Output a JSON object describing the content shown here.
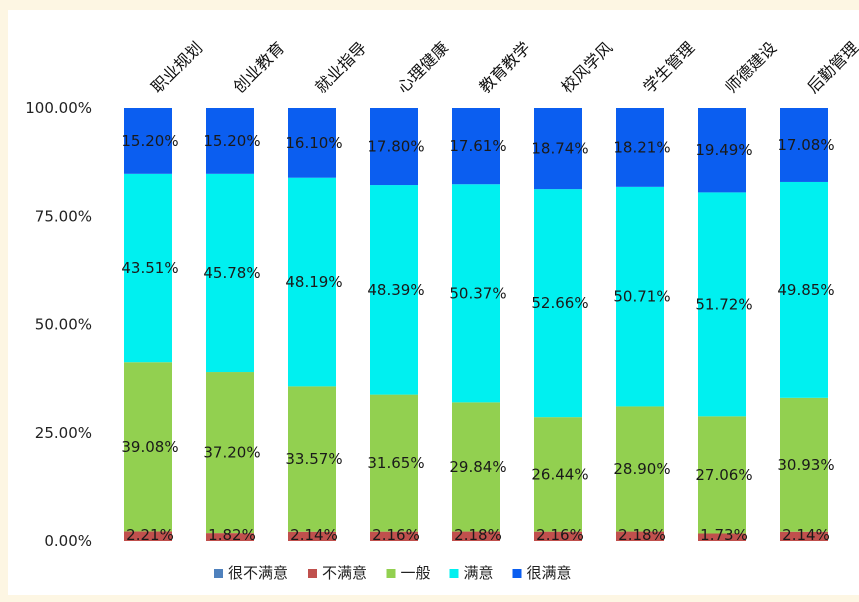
{
  "chart_data": {
    "type": "bar",
    "stacked": true,
    "percent": true,
    "title": "",
    "xlabel": "",
    "ylabel": "",
    "ylim": [
      0,
      100
    ],
    "yticks": [
      "0.00%",
      "25.00%",
      "50.00%",
      "75.00%",
      "100.00%"
    ],
    "categories": [
      "职业规划",
      "创业教育",
      "就业指导",
      "心理健康",
      "教育教学",
      "校风学风",
      "学生管理",
      "师德建设",
      "后勤管理"
    ],
    "series": [
      {
        "name": "很不满意",
        "color": "#4f81bd",
        "values": [
          0,
          0,
          0,
          0,
          0,
          0,
          0,
          0,
          0
        ],
        "labels": [
          "",
          "",
          "",
          "",
          "",
          "",
          "",
          "",
          ""
        ]
      },
      {
        "name": "不满意",
        "color": "#c0504d",
        "values": [
          2.21,
          1.82,
          2.14,
          2.16,
          2.18,
          2.16,
          2.18,
          1.73,
          2.14
        ],
        "labels": [
          "2.21%",
          "1.82%",
          "2.14%",
          "2.16%",
          "2.18%",
          "2.16%",
          "2.18%",
          "1.73%",
          "2.14%"
        ]
      },
      {
        "name": "一般",
        "color": "#92d050",
        "values": [
          39.08,
          37.2,
          33.57,
          31.65,
          29.84,
          26.44,
          28.9,
          27.06,
          30.93
        ],
        "labels": [
          "39.08%",
          "37.20%",
          "33.57%",
          "31.65%",
          "29.84%",
          "26.44%",
          "28.90%",
          "27.06%",
          "30.93%"
        ]
      },
      {
        "name": "满意",
        "color": "#00f0f0",
        "values": [
          43.51,
          45.78,
          48.19,
          48.39,
          50.37,
          52.66,
          50.71,
          51.72,
          49.85
        ],
        "labels": [
          "43.51%",
          "45.78%",
          "48.19%",
          "48.39%",
          "50.37%",
          "52.66%",
          "50.71%",
          "51.72%",
          "49.85%"
        ]
      },
      {
        "name": "很满意",
        "color": "#0b5ef0",
        "values": [
          15.2,
          15.2,
          16.1,
          17.8,
          17.61,
          18.74,
          18.21,
          19.49,
          17.08
        ],
        "labels": [
          "15.20%",
          "15.20%",
          "16.10%",
          "17.80%",
          "17.61%",
          "18.74%",
          "18.21%",
          "19.49%",
          "17.08%"
        ]
      }
    ],
    "legend_position": "bottom",
    "grid": false
  }
}
